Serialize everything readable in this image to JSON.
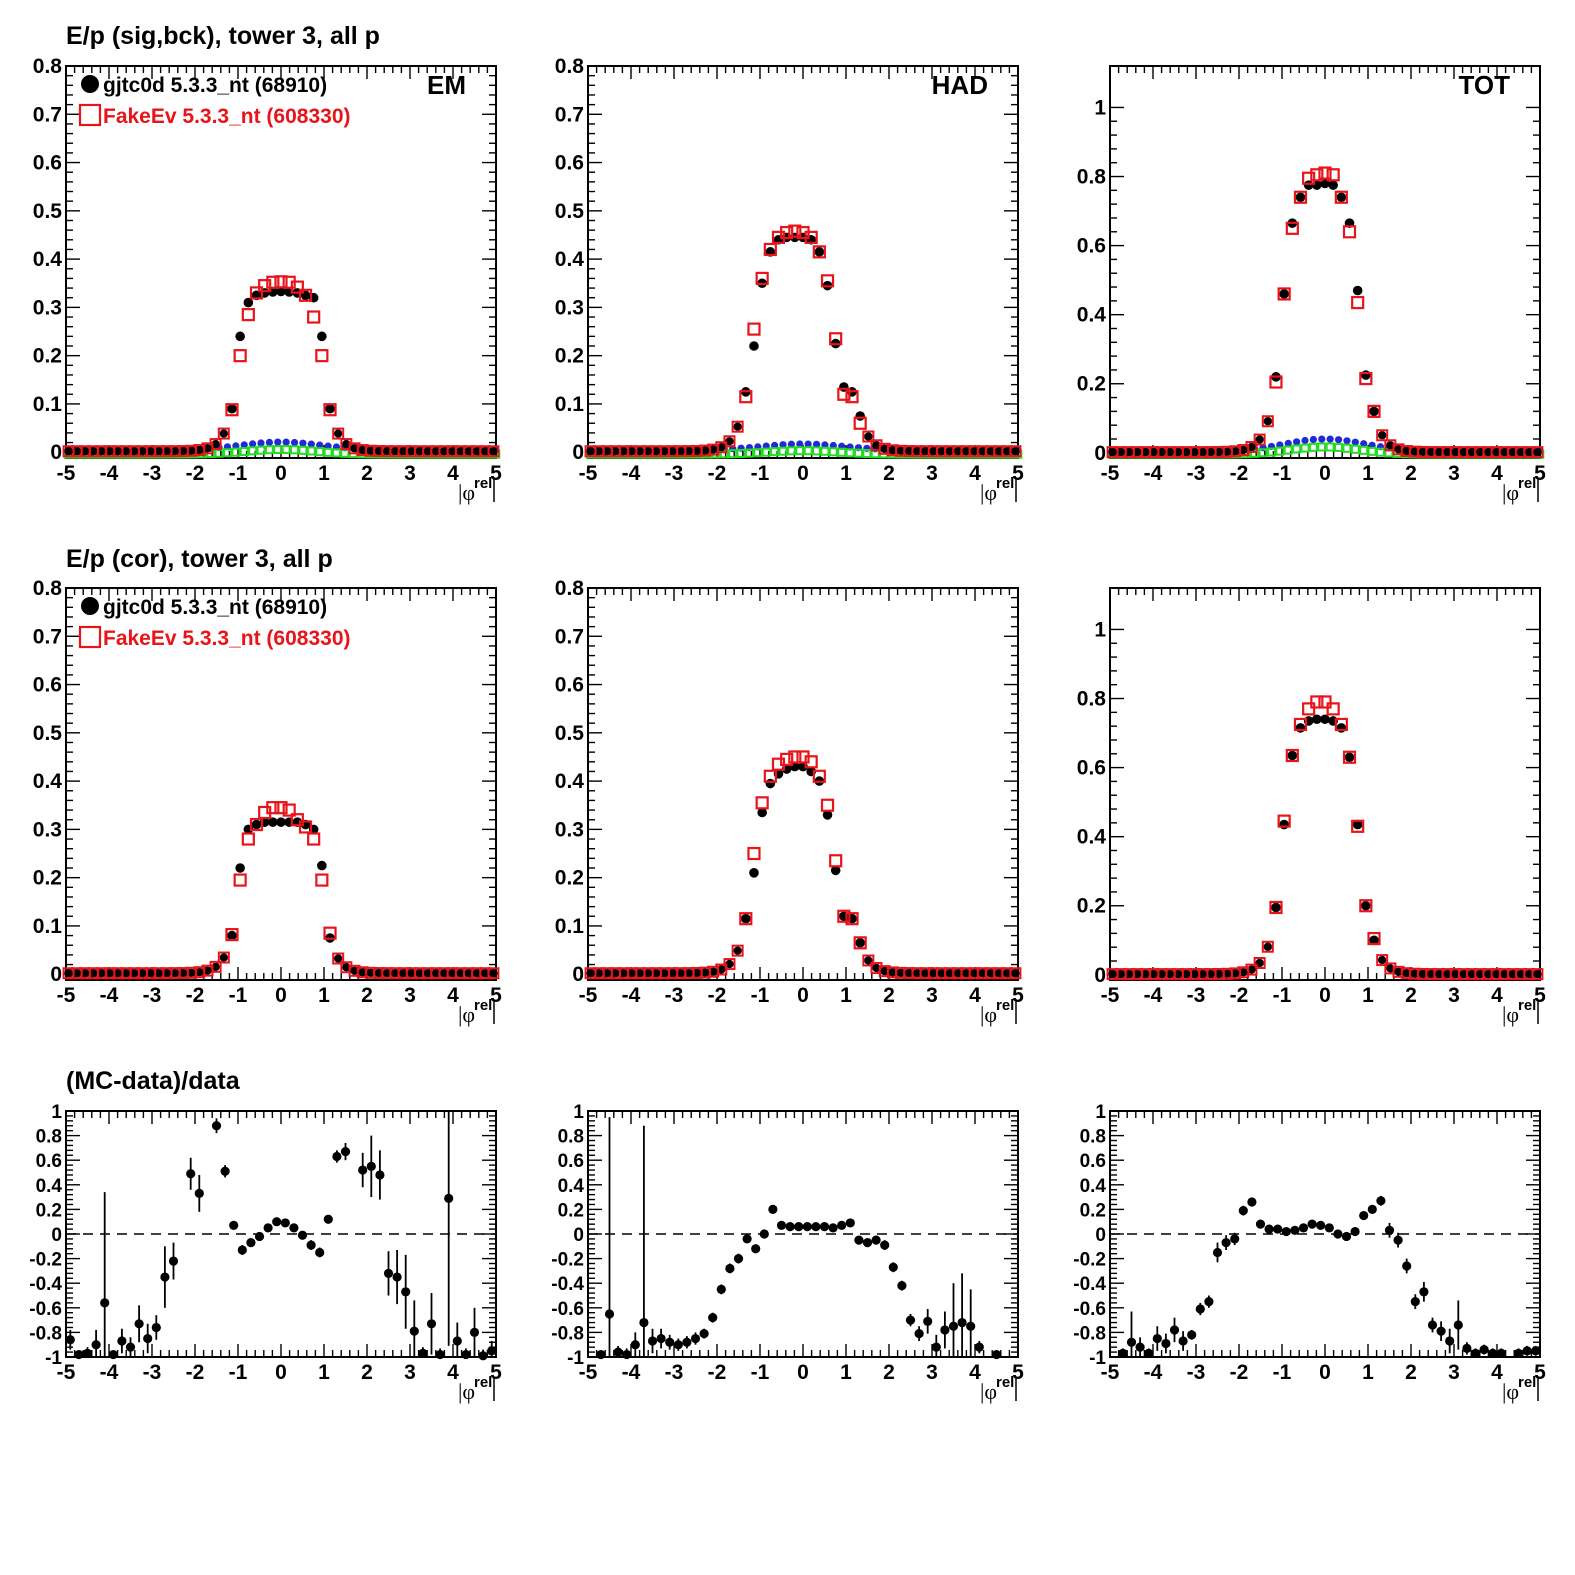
{
  "row_titles": {
    "sig": "E/p (sig,bck), tower 3, all p",
    "cor": "E/p (cor), tower 3, all p",
    "ratio": "(MC-data)/data"
  },
  "panel_tags": [
    "EM",
    "HAD",
    "TOT"
  ],
  "legend": [
    {
      "label": "gjtc0d 5.3.3_nt (68910)",
      "color": "#000000",
      "marker": "filled-circle"
    },
    {
      "label": "FakeEv 5.3.3_nt (608330)",
      "color": "#e8141a",
      "marker": "open-square"
    }
  ],
  "x_axis_label": "|φ",
  "x_axis_label_sup": "rel",
  "colors": {
    "data": "#000000",
    "mc": "#e8141a",
    "bck_blue": "#1f2bd8",
    "bck_green": "#22dd22"
  },
  "chart_data": [
    {
      "type": "scatter",
      "row": "sig",
      "panel": "EM",
      "xlim": [
        -5,
        5
      ],
      "ylim": [
        -0.012,
        0.8
      ],
      "yticks": [
        "0",
        "0.1",
        "0.2",
        "0.3",
        "0.4",
        "0.5",
        "0.6",
        "0.7",
        "0.8"
      ],
      "xticks": [
        "-5",
        "-4",
        "-3",
        "-2",
        "-1",
        "0",
        "1",
        "2",
        "3",
        "4",
        "5"
      ],
      "x": [
        -1.14,
        -0.95,
        -0.76,
        -0.57,
        -0.38,
        -0.19,
        0,
        0.19,
        0.38,
        0.57,
        0.76,
        0.95,
        1.14
      ],
      "series": [
        {
          "name": "gjtc0d 5.3.3_nt (68910)",
          "values": [
            0.09,
            0.24,
            0.31,
            0.325,
            0.33,
            0.332,
            0.333,
            0.332,
            0.33,
            0.325,
            0.32,
            0.24,
            0.09
          ]
        },
        {
          "name": "FakeEv 5.3.3_nt (608330)",
          "values": [
            0.088,
            0.2,
            0.285,
            0.33,
            0.345,
            0.352,
            0.353,
            0.352,
            0.342,
            0.325,
            0.28,
            0.2,
            0.088
          ]
        }
      ],
      "bck_peak": 0.016
    },
    {
      "type": "scatter",
      "row": "sig",
      "panel": "HAD",
      "xlim": [
        -5,
        5
      ],
      "ylim": [
        -0.012,
        0.8
      ],
      "yticks": [
        "0",
        "0.1",
        "0.2",
        "0.3",
        "0.4",
        "0.5",
        "0.6",
        "0.7",
        "0.8"
      ],
      "xticks": [
        "-5",
        "-4",
        "-3",
        "-2",
        "-1",
        "0",
        "1",
        "2",
        "3",
        "4",
        "5"
      ],
      "x": [
        -1.33,
        -1.14,
        -0.95,
        -0.76,
        -0.57,
        -0.38,
        -0.19,
        0,
        0.19,
        0.38,
        0.57,
        0.76,
        0.95,
        1.14,
        1.33
      ],
      "series": [
        {
          "name": "gjtc0d 5.3.3_nt (68910)",
          "values": [
            0.125,
            0.22,
            0.35,
            0.415,
            0.44,
            0.445,
            0.445,
            0.445,
            0.44,
            0.415,
            0.345,
            0.225,
            0.135,
            0.125,
            0.075
          ]
        },
        {
          "name": "FakeEv 5.3.3_nt (608330)",
          "values": [
            0.115,
            0.255,
            0.36,
            0.42,
            0.445,
            0.455,
            0.458,
            0.455,
            0.445,
            0.415,
            0.355,
            0.235,
            0.12,
            0.115,
            0.06
          ]
        }
      ],
      "bck_peak": 0.012
    },
    {
      "type": "scatter",
      "row": "sig",
      "panel": "TOT",
      "xlim": [
        -5,
        5
      ],
      "ylim": [
        -0.015,
        1.12
      ],
      "yticks": [
        "0",
        "0.2",
        "0.4",
        "0.6",
        "0.8",
        "1"
      ],
      "xticks": [
        "-5",
        "-4",
        "-3",
        "-2",
        "-1",
        "0",
        "1",
        "2",
        "3",
        "4",
        "5"
      ],
      "x": [
        -1.14,
        -0.95,
        -0.76,
        -0.57,
        -0.38,
        -0.19,
        0,
        0.19,
        0.38,
        0.57,
        0.76,
        0.95,
        1.14
      ],
      "series": [
        {
          "name": "gjtc0d 5.3.3_nt (68910)",
          "values": [
            0.22,
            0.46,
            0.665,
            0.74,
            0.775,
            0.775,
            0.78,
            0.775,
            0.74,
            0.665,
            0.47,
            0.225,
            0.12
          ]
        },
        {
          "name": "FakeEv 5.3.3_nt (608330)",
          "values": [
            0.205,
            0.46,
            0.65,
            0.74,
            0.795,
            0.805,
            0.81,
            0.805,
            0.74,
            0.64,
            0.435,
            0.215,
            0.12
          ]
        }
      ],
      "bck_peak": 0.035
    },
    {
      "type": "scatter",
      "row": "cor",
      "panel": "EM",
      "xlim": [
        -5,
        5
      ],
      "ylim": [
        -0.012,
        0.8
      ],
      "yticks": [
        "0",
        "0.1",
        "0.2",
        "0.3",
        "0.4",
        "0.5",
        "0.6",
        "0.7",
        "0.8"
      ],
      "xticks": [
        "-5",
        "-4",
        "-3",
        "-2",
        "-1",
        "0",
        "1",
        "2",
        "3",
        "4",
        "5"
      ],
      "x": [
        -1.14,
        -0.95,
        -0.76,
        -0.57,
        -0.38,
        -0.19,
        0,
        0.19,
        0.38,
        0.57,
        0.76,
        0.95,
        1.14
      ],
      "series": [
        {
          "name": "gjtc0d 5.3.3_nt (68910)",
          "values": [
            0.08,
            0.22,
            0.3,
            0.31,
            0.315,
            0.315,
            0.315,
            0.315,
            0.315,
            0.31,
            0.3,
            0.225,
            0.075
          ]
        },
        {
          "name": "FakeEv 5.3.3_nt (608330)",
          "values": [
            0.082,
            0.195,
            0.28,
            0.31,
            0.335,
            0.345,
            0.345,
            0.34,
            0.32,
            0.305,
            0.28,
            0.195,
            0.085
          ]
        }
      ]
    },
    {
      "type": "scatter",
      "row": "cor",
      "panel": "HAD",
      "xlim": [
        -5,
        5
      ],
      "ylim": [
        -0.012,
        0.8
      ],
      "yticks": [
        "0",
        "0.1",
        "0.2",
        "0.3",
        "0.4",
        "0.5",
        "0.6",
        "0.7",
        "0.8"
      ],
      "xticks": [
        "-5",
        "-4",
        "-3",
        "-2",
        "-1",
        "0",
        "1",
        "2",
        "3",
        "4",
        "5"
      ],
      "x": [
        -1.33,
        -1.14,
        -0.95,
        -0.76,
        -0.57,
        -0.38,
        -0.19,
        0,
        0.19,
        0.38,
        0.57,
        0.76,
        0.95,
        1.14,
        1.33
      ],
      "series": [
        {
          "name": "gjtc0d 5.3.3_nt (68910)",
          "values": [
            0.115,
            0.21,
            0.335,
            0.395,
            0.415,
            0.425,
            0.43,
            0.43,
            0.42,
            0.4,
            0.33,
            0.215,
            0.12,
            0.115,
            0.065
          ]
        },
        {
          "name": "FakeEv 5.3.3_nt (608330)",
          "values": [
            0.115,
            0.25,
            0.355,
            0.41,
            0.435,
            0.445,
            0.45,
            0.45,
            0.44,
            0.41,
            0.35,
            0.235,
            0.12,
            0.115,
            0.065
          ]
        }
      ]
    },
    {
      "type": "scatter",
      "row": "cor",
      "panel": "TOT",
      "xlim": [
        -5,
        5
      ],
      "ylim": [
        -0.015,
        1.12
      ],
      "yticks": [
        "0",
        "0.2",
        "0.4",
        "0.6",
        "0.8",
        "1"
      ],
      "xticks": [
        "-5",
        "-4",
        "-3",
        "-2",
        "-1",
        "0",
        "1",
        "2",
        "3",
        "4",
        "5"
      ],
      "x": [
        -1.14,
        -0.95,
        -0.76,
        -0.57,
        -0.38,
        -0.19,
        0,
        0.19,
        0.38,
        0.57,
        0.76,
        0.95,
        1.14
      ],
      "series": [
        {
          "name": "gjtc0d 5.3.3_nt (68910)",
          "values": [
            0.195,
            0.435,
            0.635,
            0.715,
            0.735,
            0.74,
            0.74,
            0.735,
            0.715,
            0.63,
            0.435,
            0.2,
            0.1
          ]
        },
        {
          "name": "FakeEv 5.3.3_nt (608330)",
          "values": [
            0.195,
            0.445,
            0.635,
            0.725,
            0.77,
            0.79,
            0.79,
            0.77,
            0.725,
            0.63,
            0.43,
            0.2,
            0.105
          ]
        }
      ]
    },
    {
      "type": "scatter",
      "row": "ratio",
      "panel": "EM",
      "xlim": [
        -5,
        5
      ],
      "ylim": [
        -1.0,
        1.0
      ],
      "yticks": [
        "-1",
        "-0.8",
        "-0.6",
        "-0.4",
        "-0.2",
        "0",
        "0.2",
        "0.4",
        "0.6",
        "0.8",
        "1"
      ],
      "xticks": [
        "-5",
        "-4",
        "-3",
        "-2",
        "-1",
        "0",
        "1",
        "2",
        "3",
        "4",
        "5"
      ],
      "x": [
        -4.9,
        -4.7,
        -4.5,
        -4.3,
        -4.1,
        -3.9,
        -3.7,
        -3.5,
        -3.3,
        -3.1,
        -2.9,
        -2.7,
        -2.5,
        -2.1,
        -1.9,
        -1.5,
        -1.3,
        -1.1,
        -0.9,
        -0.7,
        -0.5,
        -0.3,
        -0.1,
        0.1,
        0.3,
        0.5,
        0.7,
        0.9,
        1.1,
        1.3,
        1.5,
        1.9,
        2.1,
        2.3,
        2.5,
        2.7,
        2.9,
        3.1,
        3.3,
        3.5,
        3.7,
        3.9,
        4.1,
        4.3,
        4.5,
        4.7,
        4.9
      ],
      "series": [
        {
          "name": "gjtc0d 5.3.3_nt (68910)",
          "values": [
            -0.86,
            -0.98,
            -0.97,
            -0.9,
            -0.56,
            -0.98,
            -0.87,
            -0.92,
            -0.73,
            -0.85,
            -0.76,
            -0.35,
            -0.22,
            0.49,
            0.33,
            0.88,
            0.51,
            0.07,
            -0.13,
            -0.07,
            -0.02,
            0.05,
            0.1,
            0.09,
            0.05,
            -0.01,
            -0.09,
            -0.15,
            0.12,
            0.63,
            0.67,
            0.52,
            0.55,
            0.48,
            -0.32,
            -0.35,
            -0.47,
            -0.79,
            -0.97,
            -0.73,
            -0.98,
            0.29,
            -0.87,
            -0.98,
            -0.8,
            -0.99,
            -0.95
          ],
          "errors": [
            0.08,
            0.03,
            0.05,
            0.12,
            0.9,
            0.03,
            0.1,
            0.08,
            0.15,
            0.12,
            0.1,
            0.25,
            0.15,
            0.13,
            0.15,
            0.06,
            0.05,
            0.03,
            0.04,
            0.03,
            0.03,
            0.03,
            0.03,
            0.03,
            0.03,
            0.03,
            0.04,
            0.04,
            0.03,
            0.05,
            0.07,
            0.14,
            0.25,
            0.2,
            0.18,
            0.22,
            0.3,
            0.25,
            0.05,
            0.25,
            0.05,
            1.2,
            0.15,
            0.05,
            0.2,
            0.05,
            0.08
          ]
        }
      ]
    },
    {
      "type": "scatter",
      "row": "ratio",
      "panel": "HAD",
      "xlim": [
        -5,
        5
      ],
      "ylim": [
        -1.0,
        1.0
      ],
      "yticks": [
        "-1",
        "-0.8",
        "-0.6",
        "-0.4",
        "-0.2",
        "0",
        "0.2",
        "0.4",
        "0.6",
        "0.8",
        "1"
      ],
      "xticks": [
        "-5",
        "-4",
        "-3",
        "-2",
        "-1",
        "0",
        "1",
        "2",
        "3",
        "4",
        "5"
      ],
      "x": [
        -4.7,
        -4.5,
        -4.3,
        -4.1,
        -3.9,
        -3.7,
        -3.5,
        -3.3,
        -3.1,
        -2.9,
        -2.7,
        -2.5,
        -2.3,
        -2.1,
        -1.9,
        -1.7,
        -1.5,
        -1.3,
        -1.1,
        -0.9,
        -0.7,
        -0.5,
        -0.3,
        -0.1,
        0.1,
        0.3,
        0.5,
        0.7,
        0.9,
        1.1,
        1.3,
        1.5,
        1.7,
        1.9,
        2.1,
        2.3,
        2.5,
        2.7,
        2.9,
        3.1,
        3.3,
        3.5,
        3.7,
        3.9,
        4.1,
        4.5
      ],
      "series": [
        {
          "name": "gjtc0d 5.3.3_nt (68910)",
          "values": [
            -0.98,
            -0.65,
            -0.96,
            -0.98,
            -0.9,
            -0.72,
            -0.87,
            -0.85,
            -0.88,
            -0.9,
            -0.88,
            -0.85,
            -0.81,
            -0.68,
            -0.45,
            -0.28,
            -0.2,
            -0.04,
            -0.12,
            0.0,
            0.2,
            0.07,
            0.06,
            0.06,
            0.06,
            0.06,
            0.06,
            0.05,
            0.07,
            0.09,
            -0.05,
            -0.07,
            -0.05,
            -0.09,
            -0.27,
            -0.42,
            -0.7,
            -0.81,
            -0.71,
            -0.92,
            -0.78,
            -0.75,
            -0.72,
            -0.75,
            -0.92,
            -0.98
          ],
          "errors": [
            0.03,
            1.6,
            0.05,
            0.05,
            0.1,
            1.6,
            0.1,
            0.08,
            0.06,
            0.05,
            0.05,
            0.05,
            0.04,
            0.04,
            0.04,
            0.04,
            0.04,
            0.03,
            0.03,
            0.03,
            0.03,
            0.03,
            0.02,
            0.02,
            0.02,
            0.02,
            0.02,
            0.02,
            0.03,
            0.03,
            0.03,
            0.03,
            0.03,
            0.04,
            0.04,
            0.04,
            0.05,
            0.06,
            0.1,
            0.1,
            0.15,
            0.35,
            0.4,
            0.3,
            0.05,
            0.03
          ]
        }
      ]
    },
    {
      "type": "scatter",
      "row": "ratio",
      "panel": "TOT",
      "xlim": [
        -5,
        5
      ],
      "ylim": [
        -1.0,
        1.0
      ],
      "yticks": [
        "-1",
        "-0.8",
        "-0.6",
        "-0.4",
        "-0.2",
        "0",
        "0.2",
        "0.4",
        "0.6",
        "0.8",
        "1"
      ],
      "xticks": [
        "-5",
        "-4",
        "-3",
        "-2",
        "-1",
        "0",
        "1",
        "2",
        "3",
        "4",
        "5"
      ],
      "x": [
        -4.7,
        -4.5,
        -4.3,
        -4.1,
        -3.9,
        -3.7,
        -3.5,
        -3.3,
        -3.1,
        -2.9,
        -2.7,
        -2.5,
        -2.3,
        -2.1,
        -1.9,
        -1.7,
        -1.5,
        -1.3,
        -1.1,
        -0.9,
        -0.7,
        -0.5,
        -0.3,
        -0.1,
        0.1,
        0.3,
        0.5,
        0.7,
        0.9,
        1.1,
        1.3,
        1.5,
        1.7,
        1.9,
        2.1,
        2.3,
        2.5,
        2.7,
        2.9,
        3.1,
        3.3,
        3.5,
        3.7,
        3.9,
        4.1,
        4.5,
        4.7,
        4.9
      ],
      "series": [
        {
          "name": "gjtc0d 5.3.3_nt (68910)",
          "values": [
            -0.97,
            -0.88,
            -0.92,
            -0.97,
            -0.85,
            -0.89,
            -0.78,
            -0.87,
            -0.82,
            -0.61,
            -0.55,
            -0.15,
            -0.07,
            -0.04,
            0.19,
            0.26,
            0.08,
            0.04,
            0.04,
            0.02,
            0.03,
            0.05,
            0.08,
            0.07,
            0.05,
            0.0,
            -0.02,
            0.02,
            0.15,
            0.2,
            0.27,
            0.03,
            -0.05,
            -0.26,
            -0.55,
            -0.47,
            -0.74,
            -0.79,
            -0.87,
            -0.74,
            -0.93,
            -0.97,
            -0.94,
            -0.97,
            -0.97,
            -0.97,
            -0.95,
            -0.95
          ],
          "errors": [
            0.04,
            0.25,
            0.08,
            0.04,
            0.1,
            0.08,
            0.1,
            0.08,
            0.04,
            0.05,
            0.05,
            0.08,
            0.06,
            0.05,
            0.04,
            0.03,
            0.02,
            0.02,
            0.02,
            0.02,
            0.02,
            0.02,
            0.02,
            0.02,
            0.02,
            0.02,
            0.02,
            0.02,
            0.03,
            0.03,
            0.04,
            0.06,
            0.06,
            0.06,
            0.06,
            0.08,
            0.06,
            0.08,
            0.1,
            0.2,
            0.05,
            0.04,
            0.04,
            0.04,
            0.04,
            0.04,
            0.04,
            0.04
          ]
        }
      ]
    }
  ]
}
